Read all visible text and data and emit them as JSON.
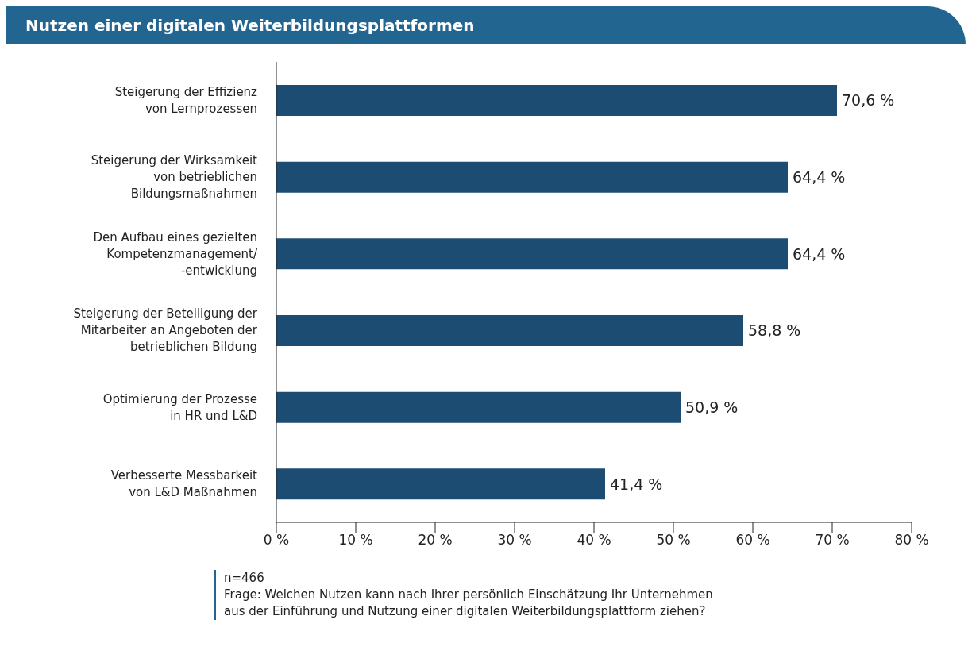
{
  "chart_data": {
    "type": "bar",
    "orientation": "horizontal",
    "title": "Nutzen einer digitalen Weiterbildungsplattformen",
    "categories": [
      "Steigerung der Effizienz\nvon Lernprozessen",
      "Steigerung der Wirksamkeit\nvon betrieblichen\nBildungsmaßnahmen",
      "Den Aufbau eines gezielten\nKompetenzmanagement/\n-entwicklung",
      "Steigerung der Beteiligung der\nMitarbeiter an Angeboten der\nbetrieblichen Bildung",
      "Optimierung der Prozesse\nin HR und L&D",
      "Verbesserte Messbarkeit\nvon L&D Maßnahmen"
    ],
    "values": [
      70.6,
      64.4,
      64.4,
      58.8,
      50.9,
      41.4
    ],
    "value_labels": [
      "70,6 %",
      "64,4 %",
      "64,4 %",
      "58,8 %",
      "50,9 %",
      "41,4 %"
    ],
    "color": "#1d4c73",
    "xlim": [
      0,
      80
    ],
    "xticks": [
      {
        "value": 0,
        "label": "0 %"
      },
      {
        "value": 10,
        "label": "10 %"
      },
      {
        "value": 20,
        "label": "20 %"
      },
      {
        "value": 30,
        "label": "30 %"
      },
      {
        "value": 40,
        "label": "40 %"
      },
      {
        "value": 50,
        "label": "50 %"
      },
      {
        "value": 60,
        "label": "60 %"
      },
      {
        "value": 70,
        "label": "70 %"
      },
      {
        "value": 80,
        "label": "80 %"
      }
    ],
    "grid": false,
    "annotations": [
      "n=466",
      "Frage: Welchen Nutzen kann nach Ihrer persönlich Einschätzung Ihr Unternehmen aus der Einführung und Nutzung einer digitalen Weiterbildungsplattform ziehen?"
    ]
  }
}
